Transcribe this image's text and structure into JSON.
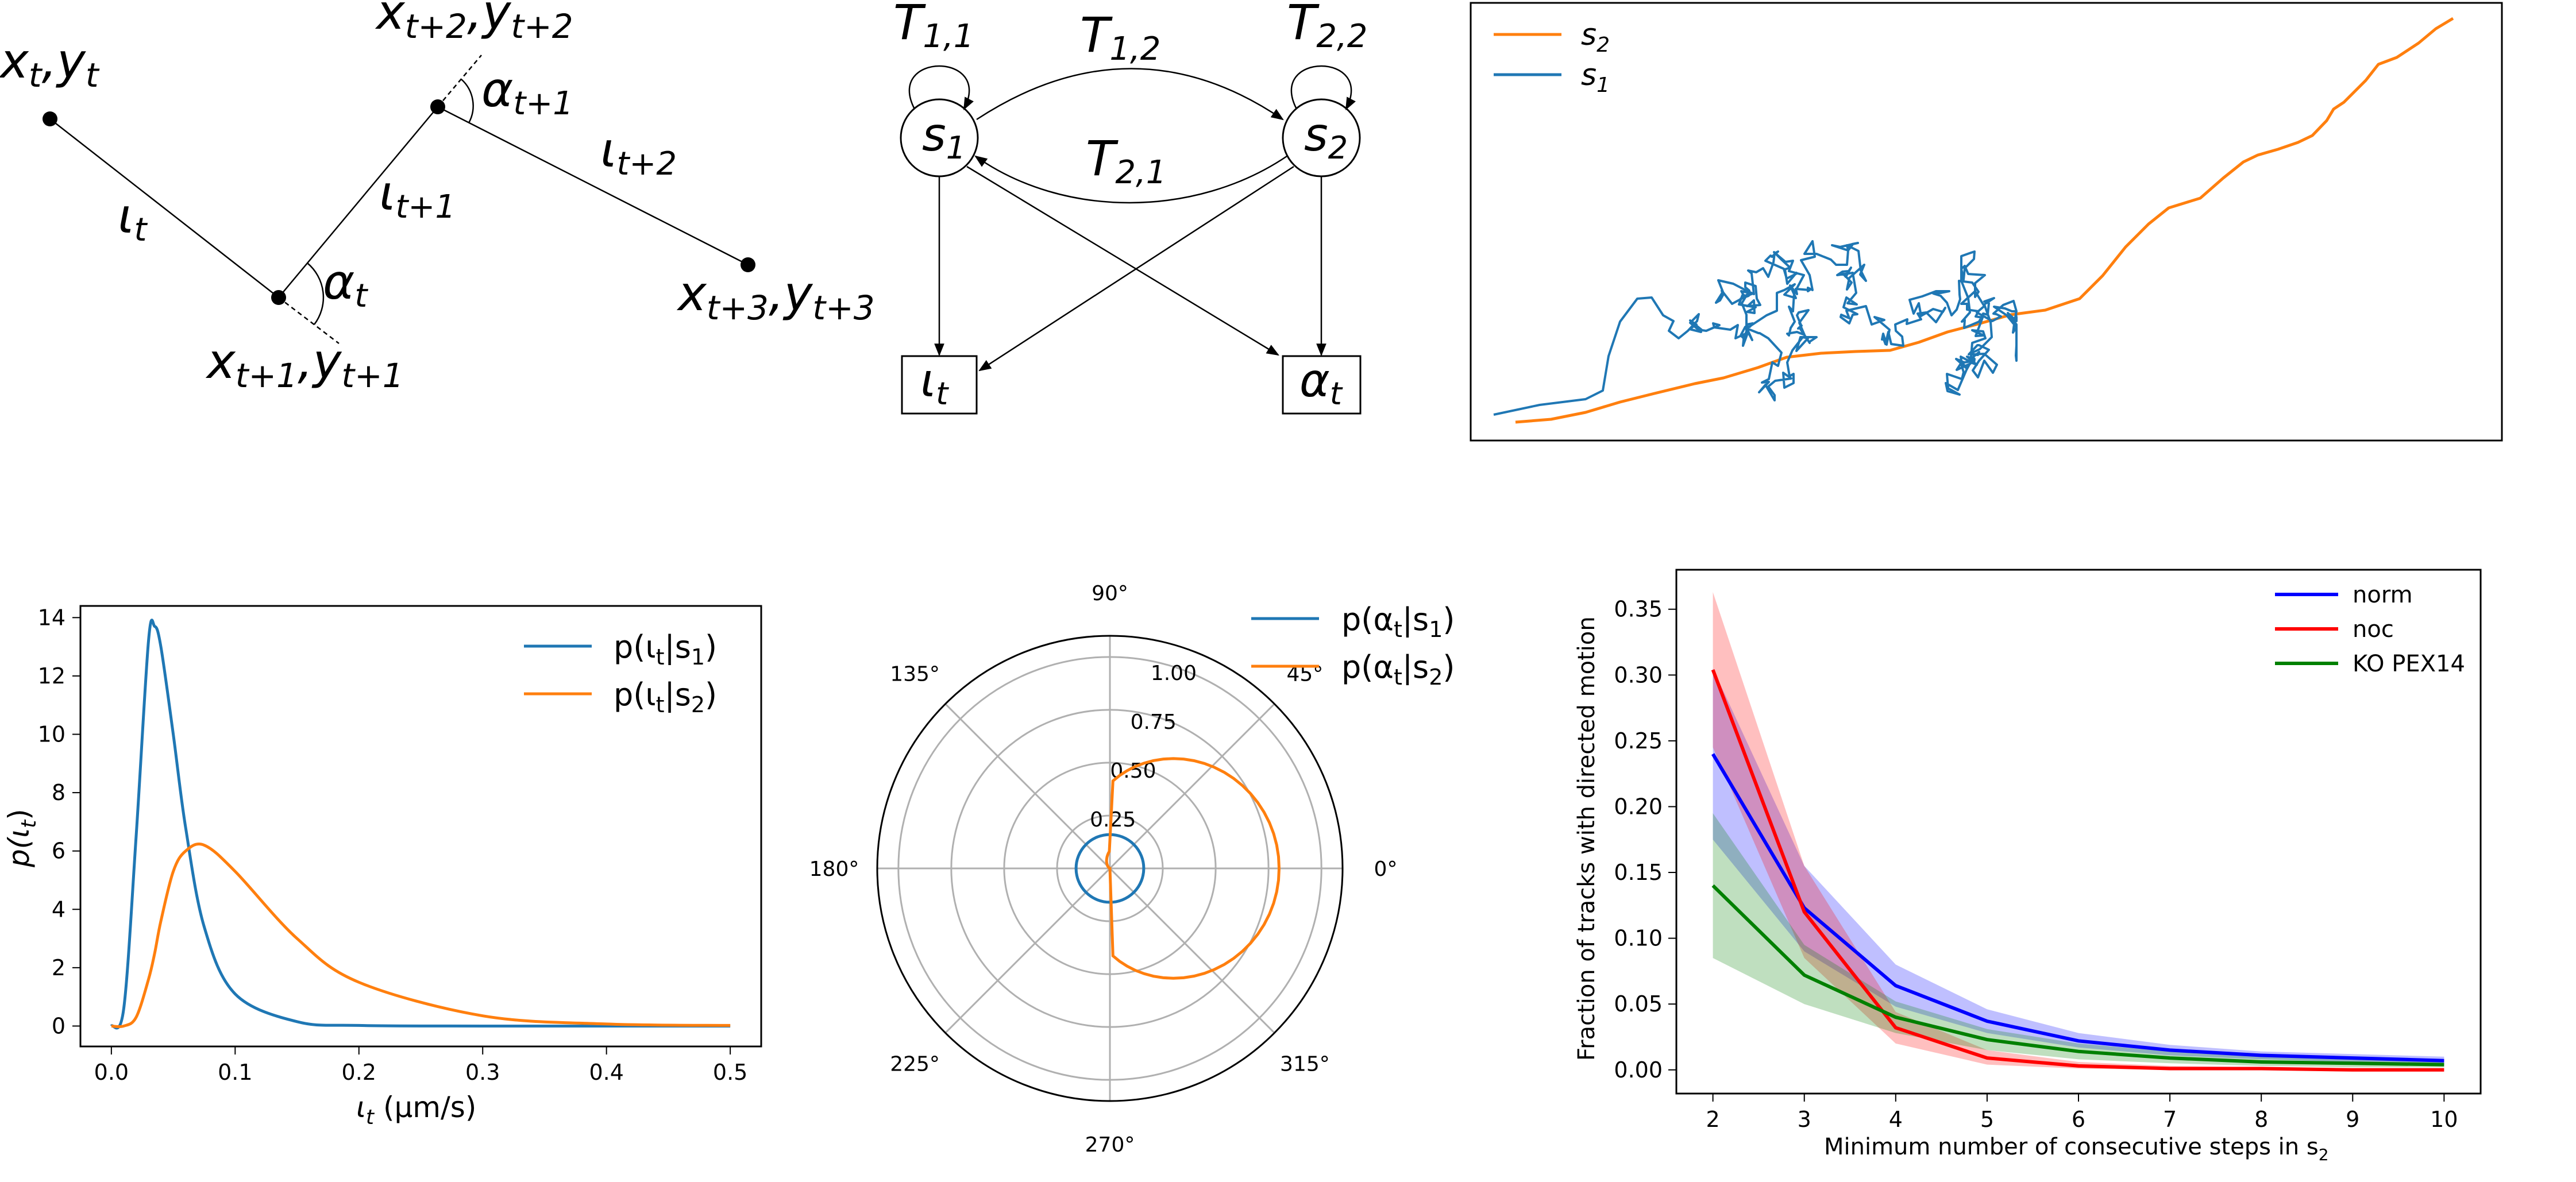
{
  "colors": {
    "blue": "#1f77b4",
    "orange": "#ff7f0e",
    "norm": "#0000ff",
    "noc": "#ff0000",
    "ko": "#008000"
  },
  "geometry_diagram": {
    "points": [
      {
        "base": "x",
        "sub1": "t",
        "mid": ",",
        "base2": "y",
        "sub2": "t"
      },
      {
        "base": "x",
        "sub1": "t+1",
        "mid": ",",
        "base2": "y",
        "sub2": "t+1"
      },
      {
        "base": "x",
        "sub1": "t+2",
        "mid": ",",
        "base2": "y",
        "sub2": "t+2"
      },
      {
        "base": "x",
        "sub1": "t+3",
        "mid": ",",
        "base2": "y",
        "sub2": "t+3"
      }
    ],
    "segments": [
      {
        "base": "ι",
        "sub": "t"
      },
      {
        "base": "ι",
        "sub": "t+1"
      },
      {
        "base": "ι",
        "sub": "t+2"
      }
    ],
    "angles": [
      {
        "base": "α",
        "sub": "t"
      },
      {
        "base": "α",
        "sub": "t+1"
      }
    ]
  },
  "hmm_diagram": {
    "states": [
      {
        "base": "s",
        "sub": "1"
      },
      {
        "base": "s",
        "sub": "2"
      }
    ],
    "transitions": [
      {
        "base": "T",
        "sub": "1,1"
      },
      {
        "base": "T",
        "sub": "1,2"
      },
      {
        "base": "T",
        "sub": "2,1"
      },
      {
        "base": "T",
        "sub": "2,2"
      }
    ],
    "observations": [
      {
        "base": "ι",
        "sub": "t"
      },
      {
        "base": "α",
        "sub": "t"
      }
    ]
  },
  "chart_data": [
    {
      "type": "line",
      "subject": "trajectory",
      "legend": [
        {
          "base": "s",
          "sub": "2",
          "color": "#ff7f0e"
        },
        {
          "base": "s",
          "sub": "1",
          "color": "#1f77b4"
        }
      ],
      "axes_visible": false,
      "legend_position": "upper-left"
    },
    {
      "type": "line",
      "x": [
        0.0,
        0.01,
        0.02,
        0.03,
        0.035,
        0.04,
        0.05,
        0.06,
        0.075,
        0.1,
        0.15,
        0.2,
        0.3,
        0.4,
        0.5
      ],
      "series": [
        {
          "name_base": "p(ι",
          "name_sub": "t",
          "name_mid": "|s",
          "name_sub2": "1",
          "name_end": ")",
          "values": [
            0.0,
            0.6,
            6.5,
            13.2,
            13.7,
            13.0,
            10.0,
            6.8,
            3.4,
            1.1,
            0.15,
            0.02,
            0.0,
            0.0,
            0.0
          ]
        },
        {
          "name_base": "p(ι",
          "name_sub": "t",
          "name_mid": "|s",
          "name_sub2": "2",
          "name_end": ")",
          "values": [
            0.0,
            0.0,
            0.3,
            1.6,
            2.5,
            3.6,
            5.3,
            6.0,
            6.2,
            5.3,
            3.0,
            1.5,
            0.35,
            0.07,
            0.02
          ]
        }
      ],
      "ylabel": {
        "base": "p(ι",
        "sub": "t",
        "end": ")"
      },
      "xlabel": {
        "base": "ι",
        "sub": "t",
        "end": " (μm/s)"
      },
      "xticks": [
        "0.0",
        "0.1",
        "0.2",
        "0.3",
        "0.4",
        "0.5"
      ],
      "yticks": [
        "0",
        "2",
        "4",
        "6",
        "8",
        "10",
        "12",
        "14"
      ],
      "xlim": [
        -0.025,
        0.525
      ],
      "ylim": [
        -0.7,
        14.4
      ],
      "legend_position": "upper-right"
    },
    {
      "type": "polar",
      "radial_ticks": [
        "0.25",
        "0.50",
        "0.75",
        "1.00"
      ],
      "angle_ticks": [
        "0°",
        "45°",
        "90°",
        "135°",
        "180°",
        "225°",
        "270°",
        "315°"
      ],
      "rmax": 1.1,
      "series": [
        {
          "name_base": "p(α",
          "name_sub": "t",
          "name_mid": "|s",
          "name_sub2": "1",
          "name_end": ")",
          "shape": "constant",
          "r": 0.16
        },
        {
          "name_base": "p(α",
          "name_sub": "t",
          "name_mid": "|s",
          "name_sub2": "2",
          "name_end": ")",
          "shape": "peak at 0°",
          "r_max": 0.8
        }
      ],
      "legend_position": "upper-right"
    },
    {
      "type": "line",
      "x": [
        2,
        3,
        4,
        5,
        6,
        7,
        8,
        9,
        10
      ],
      "series": [
        {
          "name": "norm",
          "color": "#0000ff",
          "values": [
            0.24,
            0.123,
            0.064,
            0.037,
            0.022,
            0.015,
            0.011,
            0.009,
            0.007
          ],
          "lower": [
            0.175,
            0.09,
            0.048,
            0.028,
            0.017,
            0.011,
            0.008,
            0.006,
            0.004
          ],
          "upper": [
            0.305,
            0.155,
            0.08,
            0.046,
            0.028,
            0.019,
            0.014,
            0.012,
            0.01
          ]
        },
        {
          "name": "noc",
          "color": "#ff0000",
          "values": [
            0.304,
            0.12,
            0.032,
            0.009,
            0.003,
            0.001,
            0.001,
            0.0,
            0.0
          ],
          "lower": [
            0.245,
            0.085,
            0.02,
            0.004,
            0.001,
            0.0,
            0.0,
            0.0,
            0.0
          ],
          "upper": [
            0.363,
            0.155,
            0.044,
            0.015,
            0.006,
            0.003,
            0.002,
            0.001,
            0.001
          ]
        },
        {
          "name": "KO PEX14",
          "color": "#008000",
          "values": [
            0.14,
            0.072,
            0.04,
            0.023,
            0.014,
            0.009,
            0.006,
            0.005,
            0.004
          ],
          "lower": [
            0.085,
            0.05,
            0.028,
            0.015,
            0.008,
            0.005,
            0.003,
            0.002,
            0.002
          ],
          "upper": [
            0.195,
            0.095,
            0.052,
            0.031,
            0.02,
            0.014,
            0.01,
            0.008,
            0.007
          ]
        }
      ],
      "xlabel_base": "Minimum number of consecutive steps in s",
      "xlabel_sub": "2",
      "ylabel": "Fraction of tracks with directed motion",
      "xticks": [
        "2",
        "3",
        "4",
        "5",
        "6",
        "7",
        "8",
        "9",
        "10"
      ],
      "yticks": [
        "0.00",
        "0.05",
        "0.10",
        "0.15",
        "0.20",
        "0.25",
        "0.30",
        "0.35"
      ],
      "xlim": [
        1.6,
        10.4
      ],
      "ylim": [
        -0.018,
        0.38
      ],
      "legend_position": "upper-right"
    }
  ]
}
